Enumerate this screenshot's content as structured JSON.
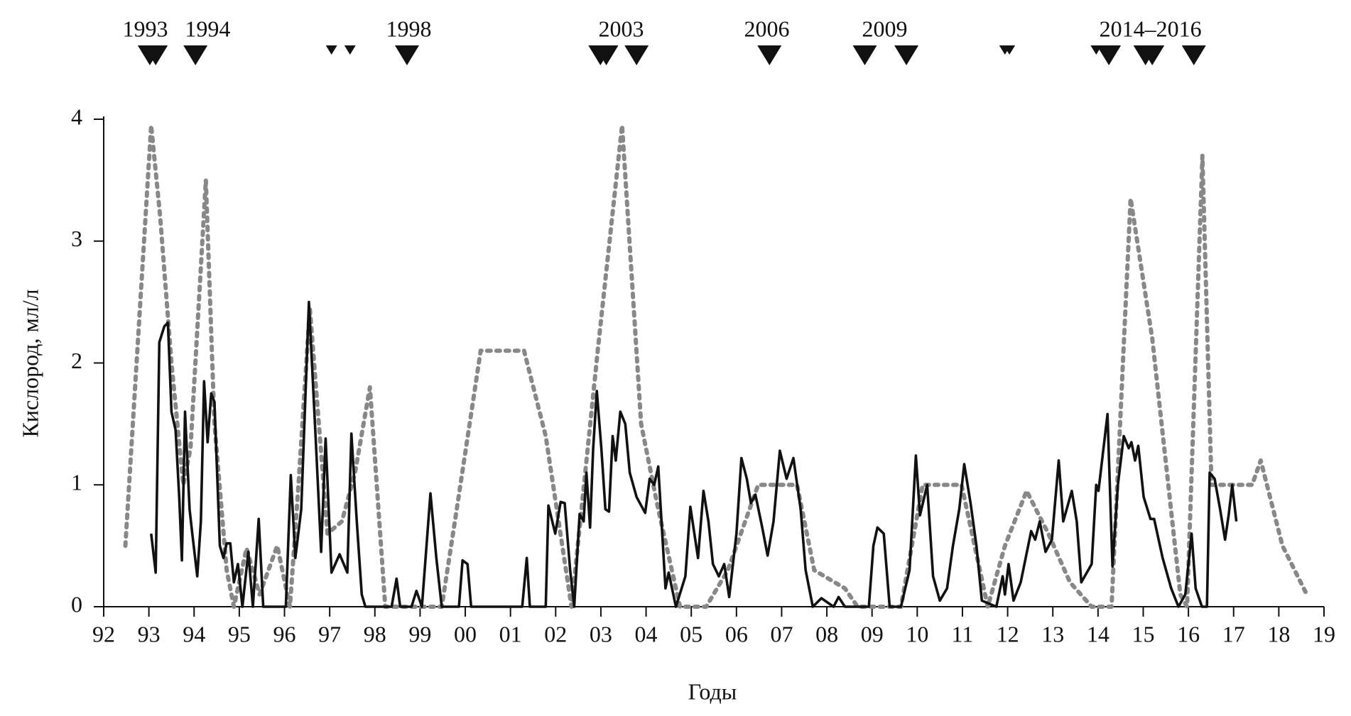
{
  "chart_data": {
    "type": "line",
    "ylabel": "Кислород, мл/л",
    "xlabel": "Годы",
    "xlim": [
      1992,
      2019
    ],
    "ylim": [
      0,
      4
    ],
    "yticks": [
      0,
      1,
      2,
      3,
      4
    ],
    "xticks": [
      {
        "value": 1992,
        "label": "92"
      },
      {
        "value": 1993,
        "label": "93"
      },
      {
        "value": 1994,
        "label": "94"
      },
      {
        "value": 1995,
        "label": "95"
      },
      {
        "value": 1996,
        "label": "96"
      },
      {
        "value": 1997,
        "label": "97"
      },
      {
        "value": 1998,
        "label": "98"
      },
      {
        "value": 1999,
        "label": "99"
      },
      {
        "value": 2000,
        "label": "00"
      },
      {
        "value": 2001,
        "label": "01"
      },
      {
        "value": 2002,
        "label": "02"
      },
      {
        "value": 2003,
        "label": "03"
      },
      {
        "value": 2004,
        "label": "04"
      },
      {
        "value": 2005,
        "label": "05"
      },
      {
        "value": 2006,
        "label": "06"
      },
      {
        "value": 2007,
        "label": "07"
      },
      {
        "value": 2008,
        "label": "08"
      },
      {
        "value": 2009,
        "label": "09"
      },
      {
        "value": 2010,
        "label": "10"
      },
      {
        "value": 2011,
        "label": "11"
      },
      {
        "value": 2012,
        "label": "12"
      },
      {
        "value": 2013,
        "label": "13"
      },
      {
        "value": 2014,
        "label": "14"
      },
      {
        "value": 2015,
        "label": "15"
      },
      {
        "value": 2016,
        "label": "16"
      },
      {
        "value": 2017,
        "label": "17"
      },
      {
        "value": 2018,
        "label": "18"
      },
      {
        "value": 2019,
        "label": "19"
      }
    ],
    "series": [
      {
        "color": "#888888",
        "style": "dotted",
        "x": [
          1992.48,
          1993.05,
          1993.25,
          1993.5,
          1993.76,
          1993.92,
          1994.26,
          1994.45,
          1994.72,
          1994.88,
          1995.16,
          1995.45,
          1995.84,
          1996.12,
          1996.31,
          1996.56,
          1996.76,
          1996.95,
          1997.27,
          1997.56,
          1997.89,
          1998.23,
          1998.81,
          1999.48,
          1999.77,
          2000.34,
          2000.72,
          2001.3,
          2001.78,
          2002.35,
          2002.93,
          2003.47,
          2003.89,
          2004.27,
          2004.75,
          2005.33,
          2005.81,
          2006.48,
          2007.34,
          2007.72,
          2008.4,
          2008.68,
          2009.26,
          2009.64,
          2010.12,
          2010.98,
          2011.56,
          2011.94,
          2012.42,
          2012.9,
          2013.38,
          2013.86,
          2014.3,
          2014.72,
          2015.2,
          2015.82,
          2015.97,
          2016.31,
          2016.51,
          2017.41,
          2017.6,
          2018.08,
          2018.62
        ],
        "values": [
          0.5,
          3.95,
          3.2,
          2.0,
          1.0,
          1.3,
          3.5,
          1.5,
          0.3,
          0,
          0.48,
          0.1,
          0.5,
          0,
          1.0,
          2.45,
          1.5,
          0.6,
          0.7,
          1.1,
          1.8,
          0,
          0,
          0,
          0.7,
          2.1,
          2.1,
          2.1,
          1.4,
          0,
          2.1,
          3.95,
          1.5,
          0.8,
          0,
          0,
          0.3,
          1.0,
          1.0,
          0.3,
          0.15,
          0,
          0,
          0,
          1.0,
          1.0,
          0,
          0.5,
          0.95,
          0.6,
          0.2,
          0,
          0,
          3.35,
          2.2,
          0.1,
          0,
          3.7,
          1.0,
          1.0,
          1.2,
          0.5,
          0.1
        ]
      },
      {
        "color": "#111111",
        "style": "solid",
        "x": [
          1993.05,
          1993.15,
          1993.23,
          1993.34,
          1993.42,
          1993.5,
          1993.59,
          1993.67,
          1993.73,
          1993.8,
          1993.9,
          1993.96,
          1994.07,
          1994.15,
          1994.22,
          1994.3,
          1994.38,
          1994.45,
          1994.57,
          1994.65,
          1994.72,
          1994.8,
          1994.88,
          1994.97,
          1995.07,
          1995.2,
          1995.3,
          1995.43,
          1995.53,
          1996.03,
          1996.14,
          1996.24,
          1996.37,
          1996.54,
          1996.7,
          1996.81,
          1996.91,
          1997.04,
          1997.22,
          1997.39,
          1997.48,
          1997.6,
          1997.71,
          1997.79,
          1998.37,
          1998.48,
          1998.56,
          1998.81,
          1998.92,
          1999.04,
          1999.23,
          1999.36,
          1999.48,
          1999.86,
          1999.94,
          2000.05,
          2000.13,
          2001.26,
          2001.36,
          2001.43,
          2001.78,
          2001.84,
          2001.99,
          2002.11,
          2002.2,
          2002.32,
          2002.41,
          2002.53,
          2002.62,
          2002.68,
          2002.76,
          2002.83,
          2002.91,
          2003.01,
          2003.1,
          2003.18,
          2003.26,
          2003.33,
          2003.43,
          2003.54,
          2003.64,
          2003.79,
          2003.98,
          2004.08,
          2004.18,
          2004.27,
          2004.43,
          2004.5,
          2004.66,
          2004.87,
          2004.98,
          2005.15,
          2005.27,
          2005.38,
          2005.48,
          2005.61,
          2005.73,
          2005.84,
          2006.0,
          2006.11,
          2006.23,
          2006.32,
          2006.42,
          2006.57,
          2006.69,
          2006.82,
          2006.96,
          2007.11,
          2007.26,
          2007.42,
          2007.53,
          2007.69,
          2007.88,
          2008.15,
          2008.26,
          2008.4,
          2008.93,
          2009.03,
          2009.12,
          2009.26,
          2009.39,
          2009.64,
          2009.83,
          2009.97,
          2010.06,
          2010.22,
          2010.35,
          2010.5,
          2010.66,
          2010.79,
          2010.93,
          2011.04,
          2011.18,
          2011.31,
          2011.43,
          2011.75,
          2011.89,
          2011.94,
          2012.02,
          2012.13,
          2012.29,
          2012.52,
          2012.61,
          2012.71,
          2012.84,
          2012.98,
          2013.13,
          2013.23,
          2013.42,
          2013.53,
          2013.63,
          2013.86,
          2013.96,
          2014.01,
          2014.21,
          2014.32,
          2014.44,
          2014.57,
          2014.68,
          2014.74,
          2014.82,
          2014.89,
          2015.01,
          2015.16,
          2015.24,
          2015.43,
          2015.62,
          2015.78,
          2015.93,
          2016.07,
          2016.16,
          2016.3,
          2016.41,
          2016.47,
          2016.58,
          2016.7,
          2016.81,
          2016.89,
          2016.97,
          2017.06
        ],
        "values": [
          0.6,
          0.28,
          2.17,
          2.3,
          2.33,
          1.6,
          1.45,
          0.9,
          0.38,
          1.6,
          0.8,
          0.6,
          0.25,
          0.7,
          1.85,
          1.35,
          1.75,
          1.68,
          0.5,
          0.4,
          0.52,
          0.52,
          0.2,
          0.35,
          0,
          0.45,
          0,
          0.72,
          0,
          0,
          1.08,
          0.4,
          0.8,
          2.5,
          1.3,
          0.45,
          1.38,
          0.28,
          0.43,
          0.28,
          1.42,
          0.7,
          0.1,
          0,
          0,
          0.23,
          0,
          0,
          0.13,
          0,
          0.93,
          0.4,
          0,
          0,
          0.38,
          0.35,
          0,
          0,
          0.4,
          0,
          0,
          0.83,
          0.6,
          0.86,
          0.85,
          0.3,
          0,
          0.76,
          0.7,
          1.1,
          0.65,
          1.3,
          1.77,
          1.3,
          0.8,
          0.78,
          1.4,
          1.2,
          1.6,
          1.5,
          1.1,
          0.9,
          0.77,
          1.05,
          1.0,
          1.15,
          0.15,
          0.28,
          0,
          0.25,
          0.82,
          0.4,
          0.95,
          0.7,
          0.35,
          0.25,
          0.35,
          0.08,
          0.6,
          1.22,
          1.05,
          0.85,
          0.92,
          0.65,
          0.42,
          0.7,
          1.28,
          1.05,
          1.22,
          0.8,
          0.3,
          0,
          0.07,
          0,
          0.08,
          0,
          0,
          0.5,
          0.65,
          0.6,
          0,
          0,
          0.3,
          1.24,
          0.75,
          1.0,
          0.25,
          0.05,
          0.15,
          0.5,
          0.8,
          1.17,
          0.85,
          0.5,
          0.05,
          0,
          0.25,
          0.1,
          0.35,
          0.05,
          0.2,
          0.62,
          0.55,
          0.7,
          0.45,
          0.55,
          1.2,
          0.7,
          0.95,
          0.7,
          0.2,
          0.35,
          1.0,
          0.95,
          1.58,
          0.33,
          1.0,
          1.4,
          1.3,
          1.35,
          1.2,
          1.32,
          0.9,
          0.72,
          0.72,
          0.4,
          0.15,
          0,
          0.1,
          0.6,
          0.15,
          0,
          0,
          1.1,
          1.05,
          0.8,
          0.55,
          0.75,
          1.0,
          0.7
        ]
      }
    ],
    "markers": [
      {
        "x": 1993.02,
        "size": "large"
      },
      {
        "x": 1993.15,
        "size": "large"
      },
      {
        "x": 1994.03,
        "size": "large"
      },
      {
        "x": 1997.04,
        "size": "small"
      },
      {
        "x": 1997.45,
        "size": "small"
      },
      {
        "x": 1998.71,
        "size": "large"
      },
      {
        "x": 2002.99,
        "size": "large"
      },
      {
        "x": 2003.12,
        "size": "large"
      },
      {
        "x": 2003.79,
        "size": "large"
      },
      {
        "x": 2006.73,
        "size": "large"
      },
      {
        "x": 2008.84,
        "size": "large"
      },
      {
        "x": 2009.76,
        "size": "large"
      },
      {
        "x": 2011.94,
        "size": "small"
      },
      {
        "x": 2012.04,
        "size": "small"
      },
      {
        "x": 2013.96,
        "size": "small"
      },
      {
        "x": 2014.24,
        "size": "large"
      },
      {
        "x": 2015.05,
        "size": "large"
      },
      {
        "x": 2015.2,
        "size": "large"
      },
      {
        "x": 2016.12,
        "size": "large"
      }
    ],
    "annotations": [
      {
        "x": 1992.92,
        "text": "1993"
      },
      {
        "x": 1994.3,
        "text": "1994"
      },
      {
        "x": 1998.75,
        "text": "1998"
      },
      {
        "x": 2003.45,
        "text": "2003"
      },
      {
        "x": 2006.67,
        "text": "2006"
      },
      {
        "x": 2009.28,
        "text": "2009"
      },
      {
        "x": 2015.16,
        "text": "2014–2016"
      }
    ]
  }
}
